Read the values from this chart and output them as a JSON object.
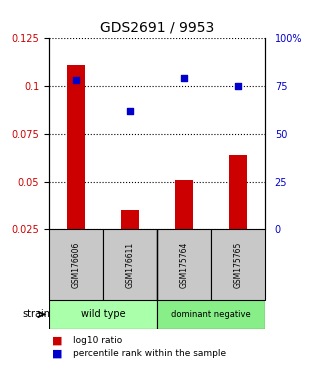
{
  "title": "GDS2691 / 9953",
  "samples": [
    "GSM176606",
    "GSM176611",
    "GSM175764",
    "GSM175765"
  ],
  "bar_values": [
    0.111,
    0.035,
    0.051,
    0.064
  ],
  "blue_pct": [
    78,
    62,
    79,
    75
  ],
  "ylim_left": [
    0.025,
    0.125
  ],
  "ylim_right": [
    0,
    100
  ],
  "yticks_left": [
    0.025,
    0.05,
    0.075,
    0.1,
    0.125
  ],
  "yticks_right": [
    0,
    25,
    50,
    75,
    100
  ],
  "ytick_labels_left": [
    "0.025",
    "0.05",
    "0.075",
    "0.1",
    "0.125"
  ],
  "ytick_labels_right": [
    "0",
    "25",
    "50",
    "75",
    "100%"
  ],
  "bar_color": "#cc0000",
  "blue_color": "#0000cc",
  "sample_box_color": "#c8c8c8",
  "wt_color": "#aaffaa",
  "dn_color": "#88ee88",
  "strain_label": "strain",
  "legend_bar": "log10 ratio",
  "legend_dot": "percentile rank within the sample",
  "bar_width": 0.35
}
